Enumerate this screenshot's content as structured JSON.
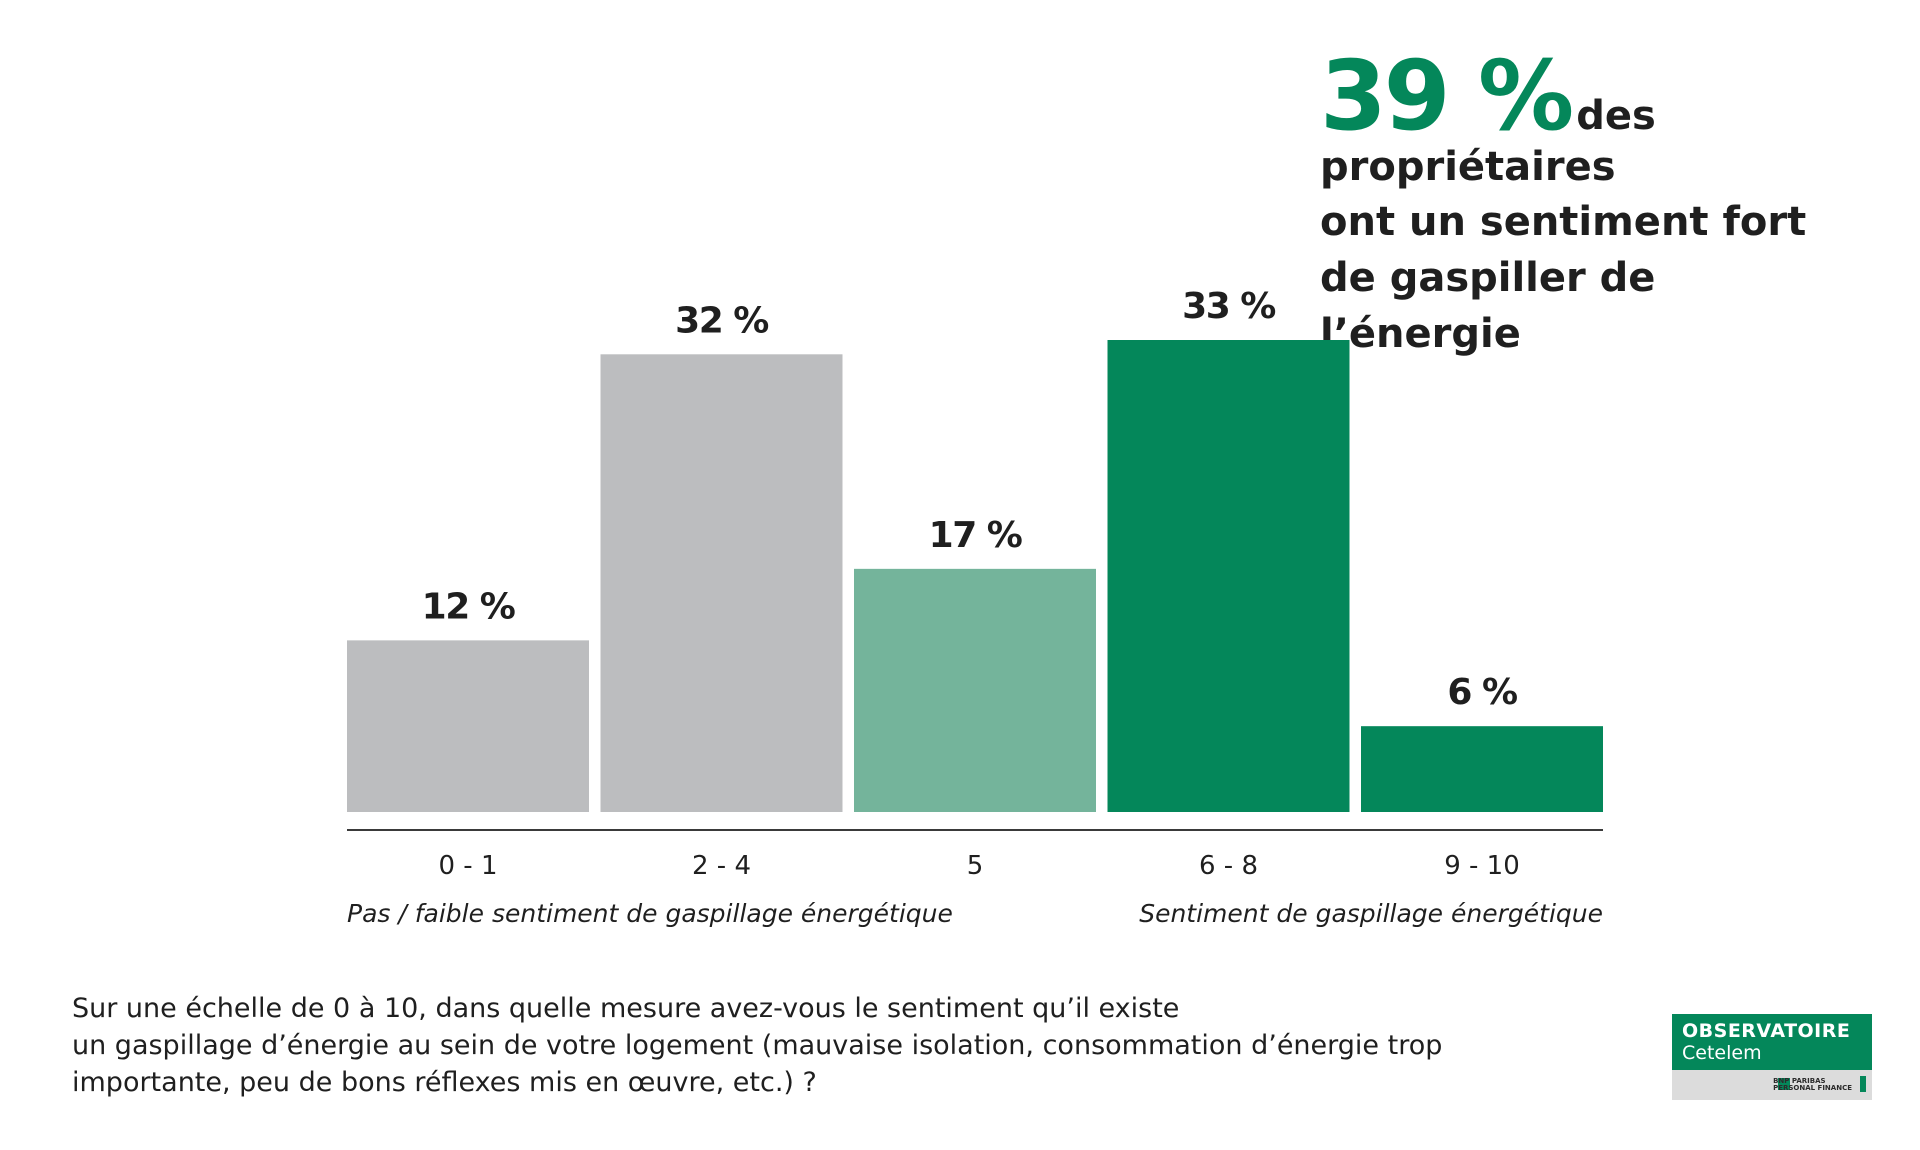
{
  "headline": {
    "big": "39 %",
    "lead": "des propriétaires",
    "rest": "ont un sentiment fort de gaspiller de l’énergie"
  },
  "chart_data": {
    "type": "bar",
    "categories": [
      "0 - 1",
      "2 - 4",
      "5",
      "6 - 8",
      "9 - 10"
    ],
    "values": [
      12,
      32,
      17,
      33,
      6
    ],
    "value_labels": [
      "12 %",
      "32 %",
      "17 %",
      "33 %",
      "6 %"
    ],
    "colors": [
      "#bcbdbf",
      "#bcbdbf",
      "#74b49b",
      "#04875a",
      "#04875a"
    ],
    "annotations": [
      "Pas / faible sentiment de gaspillage énergétique",
      "Sentiment de gaspillage énergétique"
    ],
    "ylim": [
      0,
      33
    ]
  },
  "question": {
    "line1": "Sur une échelle de 0 à 10, dans quelle mesure avez-vous le sentiment qu’il existe",
    "line2": "un gaspillage d’énergie au sein de votre logement (mauvaise isolation, consommation d’énergie trop",
    "line3": "importante, peu de bons réflexes mis en œuvre, etc.) ?"
  },
  "logo": {
    "name": "OBSERVATOIRE",
    "sub": "Cetelem",
    "bnp_line1": "BNP PARIBAS",
    "bnp_line2": "PERSONAL FINANCE"
  }
}
